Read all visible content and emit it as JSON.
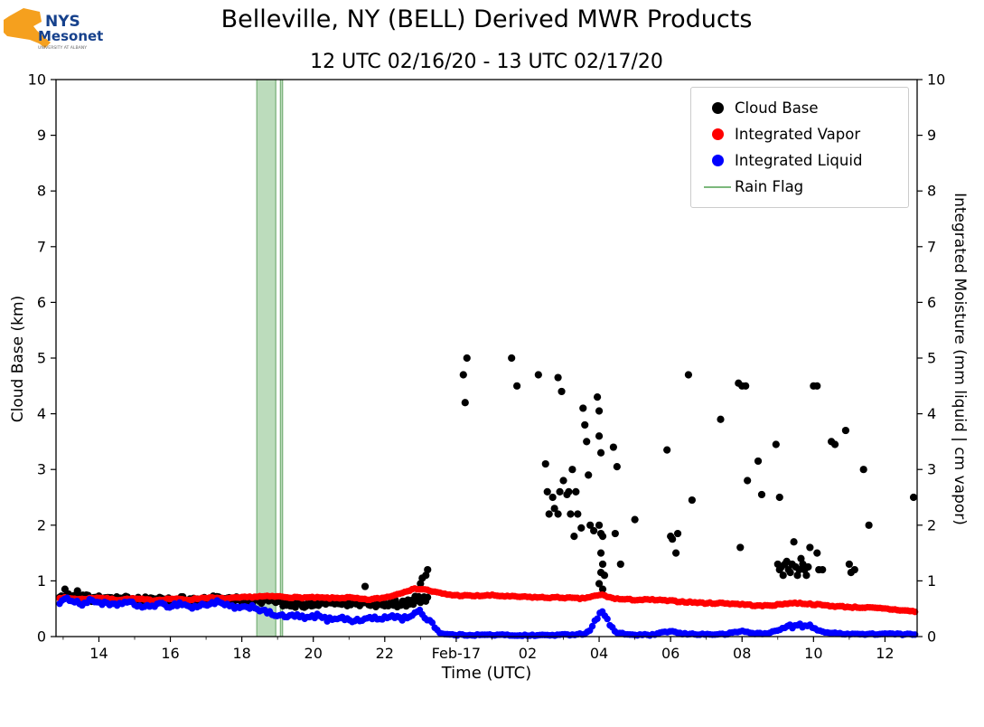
{
  "header": {
    "title": "Belleville, NY (BELL) Derived MWR Products",
    "subtitle": "12 UTC 02/16/20 - 13 UTC 02/17/20"
  },
  "axes": {
    "xlabel": "Time (UTC)",
    "ylabel_left": "Cloud Base (km)",
    "ylabel_right": "Integrated Moisture (mm liquid | cm vapor)"
  },
  "legend": {
    "items": [
      {
        "label": "Cloud Base",
        "color": "#000000",
        "marker": "dot"
      },
      {
        "label": "Integrated Vapor",
        "color": "#ff0000",
        "marker": "dot"
      },
      {
        "label": "Integrated Liquid",
        "color": "#0000ff",
        "marker": "dot"
      },
      {
        "label": "Rain Flag",
        "color": "#7cb87c",
        "marker": "line"
      }
    ]
  },
  "logo": {
    "text_nys": "NYS",
    "text_mesonet": "Mesonet",
    "tagline": "UNIVERSITY AT ALBANY",
    "orange": "#f5a01e",
    "blue": "#16418c"
  },
  "chart_data": {
    "type": "scatter",
    "title": "Belleville, NY (BELL) Derived MWR Products",
    "subtitle": "12 UTC 02/16/20 - 13 UTC 02/17/20",
    "xlabel": "Time (UTC)",
    "ylabel_left": "Cloud Base (km)",
    "ylabel_right": "Integrated Moisture (mm liquid | cm vapor)",
    "xlim": [
      12.8,
      36.9
    ],
    "ylim": [
      0,
      10
    ],
    "x_ticks": [
      {
        "t": 14,
        "label": "14"
      },
      {
        "t": 16,
        "label": "16"
      },
      {
        "t": 18,
        "label": "18"
      },
      {
        "t": 20,
        "label": "20"
      },
      {
        "t": 22,
        "label": "22"
      },
      {
        "t": 24,
        "label": "Feb-17"
      },
      {
        "t": 26,
        "label": "02"
      },
      {
        "t": 28,
        "label": "04"
      },
      {
        "t": 30,
        "label": "06"
      },
      {
        "t": 32,
        "label": "08"
      },
      {
        "t": 34,
        "label": "10"
      },
      {
        "t": 36,
        "label": "12"
      }
    ],
    "y_ticks": [
      0,
      1,
      2,
      3,
      4,
      5,
      6,
      7,
      8,
      9,
      10
    ],
    "series": {
      "rain_flag": {
        "name": "Rain Flag",
        "color": "#8fc48f",
        "edge_color": "#74ae74",
        "intervals": [
          [
            18.42,
            18.95
          ],
          [
            19.08,
            19.14
          ]
        ]
      },
      "cloud_base": {
        "name": "Cloud Base",
        "color": "#000000",
        "band": {
          "t_start": 12.9,
          "t_end": 23.25,
          "step": 0.05,
          "spread": 0.07,
          "keypoints": [
            [
              12.9,
              0.7
            ],
            [
              13.3,
              0.72
            ],
            [
              14,
              0.68
            ],
            [
              14.5,
              0.66
            ],
            [
              15,
              0.65
            ],
            [
              15.5,
              0.66
            ],
            [
              16,
              0.64
            ],
            [
              16.5,
              0.65
            ],
            [
              17,
              0.68
            ],
            [
              17.5,
              0.66
            ],
            [
              18,
              0.64
            ],
            [
              18.5,
              0.66
            ],
            [
              19,
              0.66
            ],
            [
              19.3,
              0.58
            ],
            [
              19.8,
              0.58
            ],
            [
              20.5,
              0.6
            ],
            [
              21,
              0.6
            ],
            [
              21.5,
              0.62
            ],
            [
              22,
              0.58
            ],
            [
              22.5,
              0.6
            ],
            [
              23,
              0.66
            ],
            [
              23.25,
              0.7
            ]
          ]
        },
        "points": [
          [
            13.05,
            0.85
          ],
          [
            13.4,
            0.82
          ],
          [
            21.45,
            0.9
          ],
          [
            22.85,
            0.72
          ],
          [
            23.0,
            0.95
          ],
          [
            23.05,
            1.05
          ],
          [
            23.15,
            1.1
          ],
          [
            23.2,
            1.2
          ],
          [
            24.2,
            4.7
          ],
          [
            24.3,
            5.0
          ],
          [
            24.25,
            4.2
          ],
          [
            25.55,
            5.0
          ],
          [
            25.7,
            4.5
          ],
          [
            26.3,
            4.7
          ],
          [
            26.5,
            3.1
          ],
          [
            26.55,
            2.6
          ],
          [
            26.6,
            2.2
          ],
          [
            26.7,
            2.5
          ],
          [
            26.75,
            2.3
          ],
          [
            26.85,
            2.2
          ],
          [
            26.9,
            2.6
          ],
          [
            26.85,
            4.65
          ],
          [
            26.95,
            4.4
          ],
          [
            27.0,
            2.8
          ],
          [
            27.1,
            2.55
          ],
          [
            27.15,
            2.6
          ],
          [
            27.2,
            2.2
          ],
          [
            27.25,
            3.0
          ],
          [
            27.3,
            1.8
          ],
          [
            27.35,
            2.6
          ],
          [
            27.4,
            2.2
          ],
          [
            27.5,
            1.95
          ],
          [
            27.55,
            4.1
          ],
          [
            27.6,
            3.8
          ],
          [
            27.65,
            3.5
          ],
          [
            27.7,
            2.9
          ],
          [
            27.75,
            2.0
          ],
          [
            27.85,
            1.9
          ],
          [
            27.95,
            4.3
          ],
          [
            28.0,
            4.05
          ],
          [
            28.0,
            3.6
          ],
          [
            28.05,
            3.3
          ],
          [
            28.0,
            2.0
          ],
          [
            28.05,
            1.85
          ],
          [
            28.1,
            1.8
          ],
          [
            28.05,
            1.5
          ],
          [
            28.1,
            1.3
          ],
          [
            28.05,
            1.15
          ],
          [
            28.0,
            0.95
          ],
          [
            28.1,
            0.85
          ],
          [
            28.15,
            1.1
          ],
          [
            28.4,
            3.4
          ],
          [
            28.5,
            3.05
          ],
          [
            28.45,
            1.85
          ],
          [
            28.6,
            1.3
          ],
          [
            29.0,
            2.1
          ],
          [
            29.9,
            3.35
          ],
          [
            30.0,
            1.8
          ],
          [
            30.05,
            1.75
          ],
          [
            30.15,
            1.5
          ],
          [
            30.2,
            1.85
          ],
          [
            30.5,
            4.7
          ],
          [
            30.6,
            2.45
          ],
          [
            31.4,
            3.9
          ],
          [
            31.9,
            4.55
          ],
          [
            32.0,
            4.5
          ],
          [
            32.1,
            4.5
          ],
          [
            32.15,
            2.8
          ],
          [
            31.95,
            1.6
          ],
          [
            32.45,
            3.15
          ],
          [
            32.55,
            2.55
          ],
          [
            32.95,
            3.45
          ],
          [
            33.05,
            2.5
          ],
          [
            33.0,
            1.3
          ],
          [
            33.05,
            1.2
          ],
          [
            33.1,
            1.25
          ],
          [
            33.15,
            1.1
          ],
          [
            33.2,
            1.3
          ],
          [
            33.25,
            1.35
          ],
          [
            33.3,
            1.2
          ],
          [
            33.35,
            1.15
          ],
          [
            33.4,
            1.3
          ],
          [
            33.45,
            1.7
          ],
          [
            33.5,
            1.25
          ],
          [
            33.55,
            1.1
          ],
          [
            33.6,
            1.2
          ],
          [
            33.65,
            1.4
          ],
          [
            33.7,
            1.3
          ],
          [
            33.75,
            1.2
          ],
          [
            33.8,
            1.1
          ],
          [
            33.85,
            1.25
          ],
          [
            33.9,
            1.6
          ],
          [
            34.0,
            4.5
          ],
          [
            34.1,
            4.5
          ],
          [
            34.1,
            1.5
          ],
          [
            34.15,
            1.2
          ],
          [
            34.25,
            1.2
          ],
          [
            34.5,
            3.5
          ],
          [
            34.6,
            3.45
          ],
          [
            34.9,
            3.7
          ],
          [
            35.0,
            1.3
          ],
          [
            35.05,
            1.15
          ],
          [
            35.15,
            1.2
          ],
          [
            35.4,
            3.0
          ],
          [
            35.55,
            2.0
          ],
          [
            36.8,
            2.5
          ]
        ]
      },
      "vapor": {
        "name": "Integrated Vapor",
        "color": "#ff0000",
        "step": 0.07,
        "jitter": 0.012,
        "keypoints": [
          [
            12.9,
            0.7
          ],
          [
            13.5,
            0.67
          ],
          [
            14,
            0.7
          ],
          [
            14.5,
            0.66
          ],
          [
            15,
            0.68
          ],
          [
            15.5,
            0.65
          ],
          [
            16,
            0.68
          ],
          [
            16.5,
            0.66
          ],
          [
            17,
            0.7
          ],
          [
            17.5,
            0.68
          ],
          [
            18,
            0.7
          ],
          [
            18.5,
            0.72
          ],
          [
            19,
            0.72
          ],
          [
            19.5,
            0.7
          ],
          [
            20,
            0.7
          ],
          [
            20.5,
            0.69
          ],
          [
            21,
            0.7
          ],
          [
            21.5,
            0.66
          ],
          [
            22,
            0.7
          ],
          [
            22.3,
            0.75
          ],
          [
            22.6,
            0.82
          ],
          [
            22.9,
            0.86
          ],
          [
            23.1,
            0.85
          ],
          [
            23.4,
            0.8
          ],
          [
            23.7,
            0.76
          ],
          [
            24,
            0.74
          ],
          [
            24.5,
            0.73
          ],
          [
            25,
            0.74
          ],
          [
            25.5,
            0.72
          ],
          [
            26,
            0.71
          ],
          [
            26.5,
            0.7
          ],
          [
            27,
            0.7
          ],
          [
            27.5,
            0.68
          ],
          [
            27.9,
            0.73
          ],
          [
            28.1,
            0.75
          ],
          [
            28.3,
            0.7
          ],
          [
            28.6,
            0.67
          ],
          [
            29,
            0.66
          ],
          [
            29.5,
            0.66
          ],
          [
            30,
            0.64
          ],
          [
            30.5,
            0.62
          ],
          [
            31,
            0.6
          ],
          [
            31.5,
            0.6
          ],
          [
            32,
            0.58
          ],
          [
            32.5,
            0.55
          ],
          [
            33,
            0.57
          ],
          [
            33.3,
            0.6
          ],
          [
            33.6,
            0.6
          ],
          [
            34,
            0.58
          ],
          [
            34.5,
            0.55
          ],
          [
            35,
            0.53
          ],
          [
            35.5,
            0.52
          ],
          [
            36,
            0.5
          ],
          [
            36.5,
            0.47
          ],
          [
            36.85,
            0.45
          ]
        ]
      },
      "liquid": {
        "name": "Integrated Liquid",
        "color": "#0000ff",
        "step": 0.07,
        "jitter": 0.035,
        "keypoints": [
          [
            12.9,
            0.62
          ],
          [
            13.2,
            0.68
          ],
          [
            13.5,
            0.58
          ],
          [
            13.8,
            0.65
          ],
          [
            14.1,
            0.6
          ],
          [
            14.4,
            0.55
          ],
          [
            14.7,
            0.62
          ],
          [
            15,
            0.58
          ],
          [
            15.3,
            0.52
          ],
          [
            15.6,
            0.58
          ],
          [
            16,
            0.55
          ],
          [
            16.3,
            0.6
          ],
          [
            16.6,
            0.52
          ],
          [
            17,
            0.58
          ],
          [
            17.3,
            0.62
          ],
          [
            17.6,
            0.55
          ],
          [
            18,
            0.5
          ],
          [
            18.3,
            0.55
          ],
          [
            18.6,
            0.45
          ],
          [
            18.9,
            0.4
          ],
          [
            19.2,
            0.35
          ],
          [
            19.5,
            0.38
          ],
          [
            19.8,
            0.32
          ],
          [
            20.1,
            0.38
          ],
          [
            20.4,
            0.3
          ],
          [
            20.7,
            0.35
          ],
          [
            21,
            0.3
          ],
          [
            21.3,
            0.28
          ],
          [
            21.6,
            0.35
          ],
          [
            21.9,
            0.3
          ],
          [
            22.2,
            0.38
          ],
          [
            22.5,
            0.32
          ],
          [
            22.8,
            0.4
          ],
          [
            23.0,
            0.45
          ],
          [
            23.2,
            0.3
          ],
          [
            23.35,
            0.25
          ],
          [
            23.5,
            0.08
          ],
          [
            23.7,
            0.04
          ],
          [
            24,
            0.03
          ],
          [
            25,
            0.03
          ],
          [
            26,
            0.02
          ],
          [
            27,
            0.03
          ],
          [
            27.6,
            0.05
          ],
          [
            27.8,
            0.15
          ],
          [
            27.95,
            0.35
          ],
          [
            28.05,
            0.5
          ],
          [
            28.15,
            0.4
          ],
          [
            28.3,
            0.2
          ],
          [
            28.5,
            0.06
          ],
          [
            29,
            0.03
          ],
          [
            29.5,
            0.03
          ],
          [
            30,
            0.1
          ],
          [
            30.3,
            0.05
          ],
          [
            31,
            0.04
          ],
          [
            31.5,
            0.04
          ],
          [
            32,
            0.1
          ],
          [
            32.3,
            0.06
          ],
          [
            32.7,
            0.05
          ],
          [
            33,
            0.12
          ],
          [
            33.3,
            0.18
          ],
          [
            33.6,
            0.2
          ],
          [
            33.9,
            0.18
          ],
          [
            34.2,
            0.1
          ],
          [
            34.5,
            0.06
          ],
          [
            35,
            0.05
          ],
          [
            35.5,
            0.04
          ],
          [
            36,
            0.05
          ],
          [
            36.5,
            0.04
          ],
          [
            36.85,
            0.04
          ]
        ]
      }
    }
  }
}
